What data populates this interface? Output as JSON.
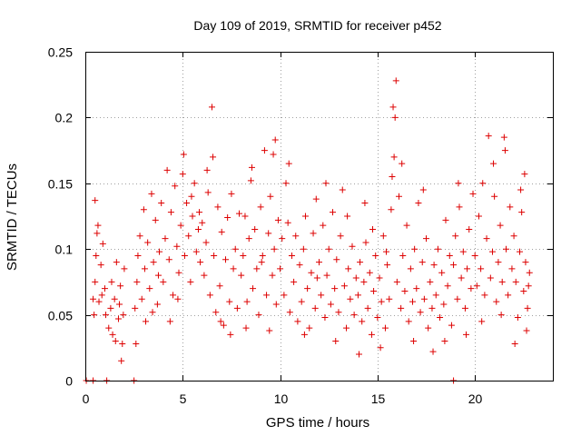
{
  "chart_data": {
    "type": "scatter",
    "title": "Day 109 of 2019, SRMTID for receiver p452",
    "xlabel": "GPS time / hours",
    "ylabel": "SRMTID / TECUs",
    "xlim": [
      0,
      24
    ],
    "ylim": [
      0,
      0.25
    ],
    "x_ticks": [
      0,
      5,
      10,
      15,
      20
    ],
    "x_tick_labels": [
      "0",
      "5",
      "10",
      "15",
      "20"
    ],
    "y_ticks": [
      0,
      0.05,
      0.1,
      0.15,
      0.2,
      0.25
    ],
    "y_tick_labels": [
      "0",
      "0.05",
      "0.1",
      "0.15",
      "0.2",
      "0.25"
    ],
    "grid": true,
    "marker": "plus",
    "series_color": "#dd0000",
    "points": [
      [
        0.05,
        0
      ],
      [
        0.4,
        0
      ],
      [
        1.1,
        0
      ],
      [
        2.5,
        0
      ],
      [
        18.9,
        0
      ],
      [
        0.4,
        0.062
      ],
      [
        0.5,
        0.075
      ],
      [
        0.55,
        0.095
      ],
      [
        0.6,
        0.112
      ],
      [
        0.5,
        0.137
      ],
      [
        0.7,
        0.06
      ],
      [
        0.8,
        0.088
      ],
      [
        0.9,
        0.104
      ],
      [
        1.0,
        0.07
      ],
      [
        1.05,
        0.05
      ],
      [
        0.45,
        0.05
      ],
      [
        0.65,
        0.118
      ],
      [
        0.85,
        0.065
      ],
      [
        1.2,
        0.04
      ],
      [
        1.3,
        0.055
      ],
      [
        1.4,
        0.035
      ],
      [
        1.5,
        0.062
      ],
      [
        1.6,
        0.09
      ],
      [
        1.7,
        0.047
      ],
      [
        1.8,
        0.072
      ],
      [
        1.9,
        0.028
      ],
      [
        1.85,
        0.015
      ],
      [
        1.35,
        0.075
      ],
      [
        1.55,
        0.03
      ],
      [
        1.75,
        0.058
      ],
      [
        2.0,
        0.085
      ],
      [
        1.95,
        0.05
      ],
      [
        2.55,
        0.055
      ],
      [
        2.6,
        0.028
      ],
      [
        2.65,
        0.075
      ],
      [
        2.7,
        0.095
      ],
      [
        2.8,
        0.11
      ],
      [
        2.9,
        0.062
      ],
      [
        3.0,
        0.13
      ],
      [
        3.05,
        0.085
      ],
      [
        3.1,
        0.045
      ],
      [
        3.2,
        0.105
      ],
      [
        3.3,
        0.07
      ],
      [
        3.4,
        0.142
      ],
      [
        3.5,
        0.09
      ],
      [
        3.6,
        0.122
      ],
      [
        3.7,
        0.058
      ],
      [
        3.8,
        0.098
      ],
      [
        3.9,
        0.135
      ],
      [
        3.45,
        0.052
      ],
      [
        3.75,
        0.08
      ],
      [
        4.0,
        0.075
      ],
      [
        4.1,
        0.108
      ],
      [
        4.2,
        0.16
      ],
      [
        4.3,
        0.092
      ],
      [
        4.4,
        0.128
      ],
      [
        4.5,
        0.065
      ],
      [
        4.6,
        0.148
      ],
      [
        4.7,
        0.102
      ],
      [
        4.8,
        0.082
      ],
      [
        4.9,
        0.118
      ],
      [
        5.0,
        0.157
      ],
      [
        5.1,
        0.095
      ],
      [
        5.2,
        0.135
      ],
      [
        5.3,
        0.11
      ],
      [
        5.4,
        0.075
      ],
      [
        5.5,
        0.125
      ],
      [
        5.6,
        0.15
      ],
      [
        5.7,
        0.098
      ],
      [
        5.8,
        0.115
      ],
      [
        5.9,
        0.09
      ],
      [
        4.35,
        0.045
      ],
      [
        4.75,
        0.062
      ],
      [
        5.05,
        0.172
      ],
      [
        5.45,
        0.14
      ],
      [
        5.85,
        0.128
      ],
      [
        6.0,
        0.12
      ],
      [
        6.1,
        0.08
      ],
      [
        6.2,
        0.105
      ],
      [
        6.3,
        0.143
      ],
      [
        6.4,
        0.065
      ],
      [
        6.5,
        0.208
      ],
      [
        6.55,
        0.17
      ],
      [
        6.6,
        0.095
      ],
      [
        6.7,
        0.052
      ],
      [
        6.8,
        0.132
      ],
      [
        6.9,
        0.072
      ],
      [
        7.0,
        0.113
      ],
      [
        7.1,
        0.042
      ],
      [
        7.2,
        0.092
      ],
      [
        7.3,
        0.124
      ],
      [
        7.4,
        0.06
      ],
      [
        7.5,
        0.142
      ],
      [
        7.6,
        0.085
      ],
      [
        7.7,
        0.1
      ],
      [
        7.8,
        0.055
      ],
      [
        7.9,
        0.127
      ],
      [
        6.25,
        0.16
      ],
      [
        6.95,
        0.045
      ],
      [
        7.45,
        0.035
      ],
      [
        8.0,
        0.08
      ],
      [
        8.1,
        0.095
      ],
      [
        8.2,
        0.125
      ],
      [
        8.3,
        0.06
      ],
      [
        8.4,
        0.108
      ],
      [
        8.5,
        0.152
      ],
      [
        8.6,
        0.07
      ],
      [
        8.7,
        0.115
      ],
      [
        8.8,
        0.085
      ],
      [
        8.9,
        0.05
      ],
      [
        9.0,
        0.132
      ],
      [
        9.1,
        0.095
      ],
      [
        9.2,
        0.175
      ],
      [
        9.3,
        0.065
      ],
      [
        9.4,
        0.112
      ],
      [
        9.5,
        0.14
      ],
      [
        9.6,
        0.08
      ],
      [
        9.7,
        0.1
      ],
      [
        9.75,
        0.183
      ],
      [
        9.8,
        0.058
      ],
      [
        9.9,
        0.122
      ],
      [
        8.25,
        0.04
      ],
      [
        8.55,
        0.162
      ],
      [
        9.05,
        0.09
      ],
      [
        9.45,
        0.038
      ],
      [
        9.65,
        0.172
      ],
      [
        10.0,
        0.085
      ],
      [
        10.1,
        0.108
      ],
      [
        10.2,
        0.065
      ],
      [
        10.3,
        0.15
      ],
      [
        10.4,
        0.12
      ],
      [
        10.5,
        0.052
      ],
      [
        10.6,
        0.095
      ],
      [
        10.7,
        0.075
      ],
      [
        10.8,
        0.11
      ],
      [
        10.9,
        0.045
      ],
      [
        11.0,
        0.088
      ],
      [
        11.1,
        0.06
      ],
      [
        11.2,
        0.1
      ],
      [
        11.3,
        0.125
      ],
      [
        11.4,
        0.07
      ],
      [
        11.5,
        0.04
      ],
      [
        11.6,
        0.082
      ],
      [
        11.7,
        0.112
      ],
      [
        11.8,
        0.055
      ],
      [
        11.9,
        0.078
      ],
      [
        10.45,
        0.165
      ],
      [
        11.25,
        0.035
      ],
      [
        11.85,
        0.138
      ],
      [
        12.0,
        0.09
      ],
      [
        12.1,
        0.065
      ],
      [
        12.2,
        0.118
      ],
      [
        12.3,
        0.048
      ],
      [
        12.4,
        0.08
      ],
      [
        12.5,
        0.1
      ],
      [
        12.6,
        0.058
      ],
      [
        12.7,
        0.128
      ],
      [
        12.8,
        0.07
      ],
      [
        12.9,
        0.092
      ],
      [
        13.0,
        0.052
      ],
      [
        13.1,
        0.11
      ],
      [
        13.2,
        0.145
      ],
      [
        13.3,
        0.072
      ],
      [
        13.4,
        0.04
      ],
      [
        13.5,
        0.085
      ],
      [
        13.6,
        0.062
      ],
      [
        13.7,
        0.102
      ],
      [
        13.8,
        0.05
      ],
      [
        13.9,
        0.078
      ],
      [
        12.35,
        0.15
      ],
      [
        12.85,
        0.03
      ],
      [
        13.45,
        0.125
      ],
      [
        14.0,
        0.065
      ],
      [
        14.1,
        0.09
      ],
      [
        14.2,
        0.045
      ],
      [
        14.3,
        0.075
      ],
      [
        14.4,
        0.105
      ],
      [
        14.5,
        0.055
      ],
      [
        14.6,
        0.082
      ],
      [
        14.7,
        0.035
      ],
      [
        14.8,
        0.068
      ],
      [
        14.9,
        0.095
      ],
      [
        15.0,
        0.048
      ],
      [
        15.1,
        0.078
      ],
      [
        15.2,
        0.06
      ],
      [
        15.3,
        0.11
      ],
      [
        15.4,
        0.04
      ],
      [
        15.5,
        0.088
      ],
      [
        15.6,
        0.062
      ],
      [
        15.7,
        0.13
      ],
      [
        15.8,
        0.208
      ],
      [
        15.85,
        0.17
      ],
      [
        15.9,
        0.2
      ],
      [
        15.95,
        0.228
      ],
      [
        14.05,
        0.02
      ],
      [
        14.35,
        0.135
      ],
      [
        14.75,
        0.115
      ],
      [
        15.15,
        0.025
      ],
      [
        15.45,
        0.098
      ],
      [
        15.75,
        0.155
      ],
      [
        16.0,
        0.075
      ],
      [
        16.1,
        0.14
      ],
      [
        16.2,
        0.055
      ],
      [
        16.3,
        0.095
      ],
      [
        16.4,
        0.068
      ],
      [
        16.5,
        0.118
      ],
      [
        16.6,
        0.045
      ],
      [
        16.7,
        0.085
      ],
      [
        16.8,
        0.06
      ],
      [
        16.9,
        0.1
      ],
      [
        17.0,
        0.07
      ],
      [
        17.1,
        0.135
      ],
      [
        17.2,
        0.052
      ],
      [
        17.3,
        0.09
      ],
      [
        17.4,
        0.062
      ],
      [
        17.5,
        0.108
      ],
      [
        17.6,
        0.04
      ],
      [
        17.7,
        0.075
      ],
      [
        17.8,
        0.055
      ],
      [
        17.9,
        0.088
      ],
      [
        16.25,
        0.165
      ],
      [
        16.85,
        0.03
      ],
      [
        17.35,
        0.145
      ],
      [
        17.85,
        0.022
      ],
      [
        18.0,
        0.065
      ],
      [
        18.1,
        0.1
      ],
      [
        18.2,
        0.048
      ],
      [
        18.3,
        0.082
      ],
      [
        18.4,
        0.058
      ],
      [
        18.5,
        0.122
      ],
      [
        18.6,
        0.072
      ],
      [
        18.7,
        0.095
      ],
      [
        18.8,
        0.042
      ],
      [
        18.9,
        0.088
      ],
      [
        19.0,
        0.11
      ],
      [
        19.1,
        0.062
      ],
      [
        19.2,
        0.132
      ],
      [
        19.3,
        0.078
      ],
      [
        19.4,
        0.098
      ],
      [
        19.5,
        0.055
      ],
      [
        19.6,
        0.085
      ],
      [
        19.7,
        0.115
      ],
      [
        19.8,
        0.07
      ],
      [
        19.9,
        0.142
      ],
      [
        18.45,
        0.03
      ],
      [
        19.15,
        0.15
      ],
      [
        19.55,
        0.035
      ],
      [
        20.0,
        0.095
      ],
      [
        20.1,
        0.072
      ],
      [
        20.2,
        0.125
      ],
      [
        20.3,
        0.085
      ],
      [
        20.4,
        0.15
      ],
      [
        20.5,
        0.065
      ],
      [
        20.6,
        0.108
      ],
      [
        20.7,
        0.186
      ],
      [
        20.8,
        0.078
      ],
      [
        20.9,
        0.098
      ],
      [
        21.0,
        0.14
      ],
      [
        21.1,
        0.06
      ],
      [
        21.2,
        0.09
      ],
      [
        21.3,
        0.118
      ],
      [
        21.4,
        0.075
      ],
      [
        21.5,
        0.185
      ],
      [
        21.55,
        0.175
      ],
      [
        21.6,
        0.1
      ],
      [
        21.7,
        0.065
      ],
      [
        21.8,
        0.132
      ],
      [
        21.9,
        0.085
      ],
      [
        20.35,
        0.045
      ],
      [
        20.95,
        0.165
      ],
      [
        21.35,
        0.05
      ],
      [
        22.0,
        0.11
      ],
      [
        22.1,
        0.075
      ],
      [
        22.2,
        0.048
      ],
      [
        22.3,
        0.098
      ],
      [
        22.4,
        0.128
      ],
      [
        22.5,
        0.068
      ],
      [
        22.55,
        0.157
      ],
      [
        22.6,
        0.09
      ],
      [
        22.7,
        0.055
      ],
      [
        22.75,
        0.072
      ],
      [
        22.8,
        0.082
      ],
      [
        22.05,
        0.028
      ],
      [
        22.35,
        0.145
      ],
      [
        22.65,
        0.038
      ]
    ]
  }
}
